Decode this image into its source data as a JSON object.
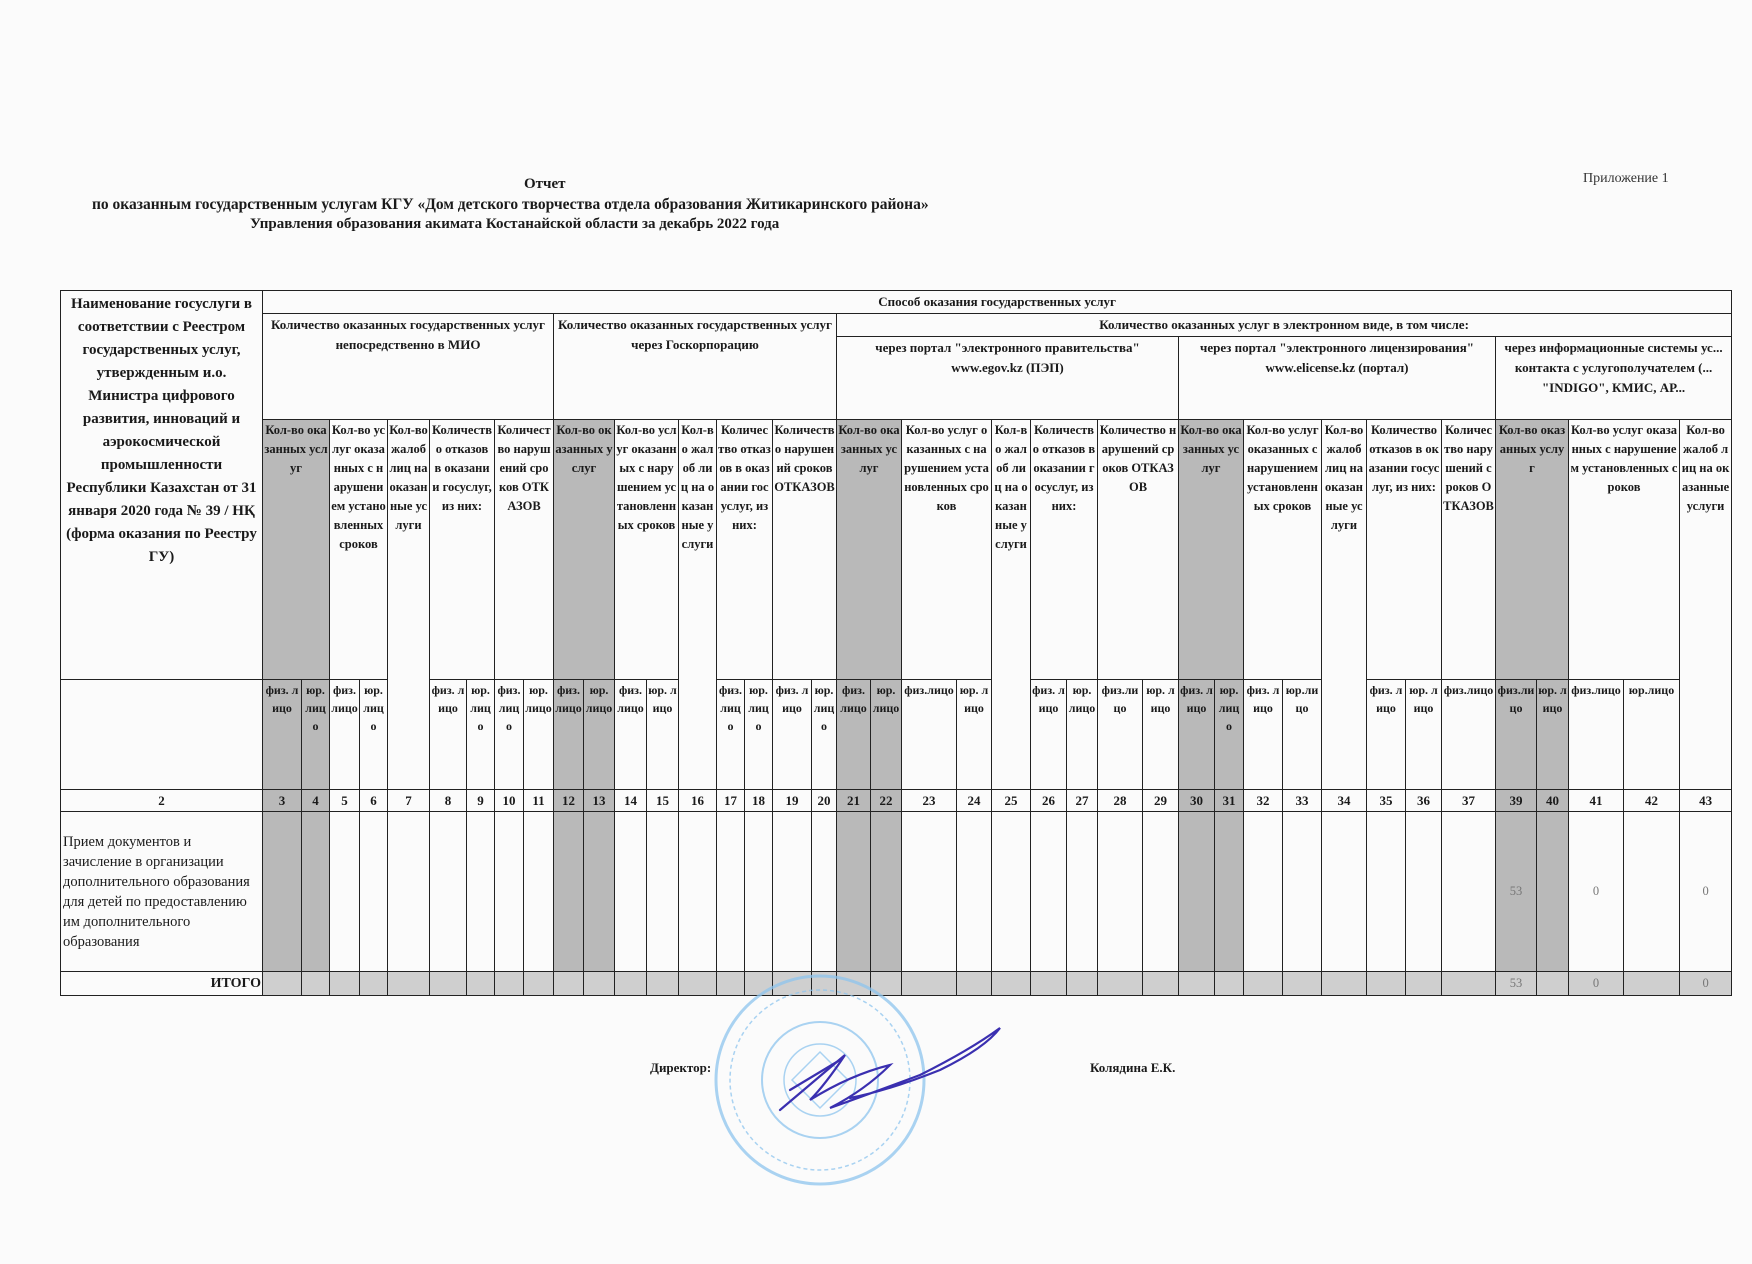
{
  "header": {
    "appendix": "Приложение 1",
    "title": "Отчет",
    "subtitle_line1": "по оказанным государственным услугам КГУ «Дом детского творчества отдела образования Житикаринского района»",
    "subtitle_line2": "Управления образования акимата Костанайской области за декабрь 2022 года"
  },
  "table": {
    "name_header": "Наименование госуслуги в соответствии с Реестром государственных услуг, утвержденным и.о. Министра цифрового развития, инноваций и аэрокосмической промышленности Республики Казахстан от 31 января 2020 года № 39 / НҚ (форма оказания по Реестру ГУ)",
    "method_header": "Способ оказания государственных услуг",
    "group_mio": "Количество оказанных государственных услуг непосредственно в МИО",
    "group_goscorp": "Количество оказанных государственных услуг через Госкорпорацию",
    "group_electronic": "Количество оказанных услуг в электронном виде, в том числе:",
    "portal_egov": "через портал \"электронного правительства\" www.egov.kz (ПЭП)",
    "portal_elicense": "через портал \"электронного лицензирования\" www.elicense.kz (портал)",
    "portal_info": "через информационные системы ус... контакта с услугополучателем (... \"INDIGO\", КМИС, АР...",
    "col_headers": {
      "mio": [
        "Кол-во оказанных услуг",
        "Кол-во услуг оказанных с нарушением установленных сроков",
        "Кол-во жалоб лиц на оказанные услуги",
        "Количество отказов в оказании госуслуг, из них:",
        "Количество нарушений сроков ОТКАЗОВ"
      ],
      "goscorp": [
        "Кол-во оказанных услуг",
        "Кол-во услуг оказанных с нарушением установленных сроков",
        "Кол-во жалоб лиц на оказанные услуги",
        "Количество отказов в оказании госуслуг, из них:",
        "Количество нарушений сроков ОТКАЗОВ"
      ],
      "egov": [
        "Кол-во оказанных услуг",
        "Кол-во услуг оказанных с нарушением установленных сроков",
        "Кол-во жалоб лиц на оказанные услуги",
        "Количество отказов в оказании госуслуг, из них:",
        "Количество нарушений сроков ОТКАЗОВ"
      ],
      "elicense": [
        "Кол-во оказанных услуг",
        "Кол-во услуг оказанных с нарушением установленных сроков",
        "Кол-во жалоб лиц на оказанные услуги",
        "Количество отказов в оказании госуслуг, из них:",
        "Количество нарушений сроков ОТКАЗОВ"
      ],
      "info": [
        "Кол-во оказанных услуг",
        "Кол-во услуг оказанных с нарушением установленных сроков",
        "Кол-во жалоб лиц на оказанные услуги"
      ]
    },
    "sub_labels": [
      "физ. лицо",
      "юр. лицо",
      "физ. лицо",
      "юр. лицо",
      "",
      "физ. лицо",
      "юр. лицо",
      "физ. лицо",
      "юр. лицо",
      "физ. лицо",
      "юр. лицо",
      "физ. лицо",
      "юр. лицо",
      "",
      "физ. лицо",
      "юр. лицо",
      "физ. лицо",
      "юр. лицо",
      "физ. лицо",
      "юр. лицо",
      "физ.лицо",
      "юр. лицо",
      "",
      "физ. лицо",
      "юр. лицо",
      "физ.лицо",
      "юр. лицо",
      "физ. лицо",
      "юр. лицо",
      "физ. лицо",
      "юр.лицо",
      "",
      "физ. лицо",
      "юр. лицо",
      "физ.лицо",
      "физ.лицо",
      "юр. лицо",
      "физ.лицо",
      "юр.лицо",
      ""
    ],
    "column_numbers": [
      "2",
      "3",
      "4",
      "5",
      "6",
      "7",
      "8",
      "9",
      "10",
      "11",
      "12",
      "13",
      "14",
      "15",
      "16",
      "17",
      "18",
      "19",
      "20",
      "21",
      "22",
      "23",
      "24",
      "25",
      "26",
      "27",
      "28",
      "29",
      "30",
      "31",
      "32",
      "33",
      "34",
      "35",
      "36",
      "37",
      "39",
      "40",
      "41",
      "42",
      "43"
    ],
    "rows": [
      {
        "service": "Прием документов и зачисление в организации дополнительного образования для детей по предоставлению им дополнительного образования",
        "values": [
          "",
          "",
          "",
          "",
          "",
          "",
          "",
          "",
          "",
          "",
          "",
          "",
          "",
          "",
          "",
          "",
          "",
          "",
          "",
          "",
          "",
          "",
          "",
          "",
          "",
          "",
          "",
          "",
          "",
          "",
          "",
          "",
          "",
          "",
          "",
          "53",
          "",
          "0",
          "",
          "0"
        ]
      }
    ],
    "total": {
      "label": "ИТОГО",
      "values": [
        "",
        "",
        "",
        "",
        "",
        "",
        "",
        "",
        "",
        "",
        "",
        "",
        "",
        "",
        "",
        "",
        "",
        "",
        "",
        "",
        "",
        "",
        "",
        "",
        "",
        "",
        "",
        "",
        "",
        "",
        "",
        "",
        "",
        "",
        "",
        "53",
        "",
        "0",
        "",
        "0"
      ]
    }
  },
  "footer": {
    "director_label": "Директор:",
    "director_name": "Колядина Е.К."
  },
  "colors": {
    "shaded_column": "#b9b9b9",
    "stamp": "#8ec5ee",
    "signature": "#3a2fb0"
  }
}
